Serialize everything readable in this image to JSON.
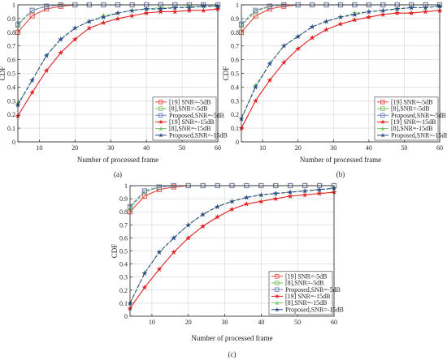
{
  "colors": {
    "ref19_m5": "#e8443a",
    "ref8_m5": "#6fbf5a",
    "prop_m5": "#6b7bb8",
    "ref19_m15": "#e21f1f",
    "ref8_m15": "#79c267",
    "prop_m15": "#2f4e8c"
  },
  "chart_data": [
    {
      "type": "line",
      "caption": "(a)",
      "xlabel": "Number of processed frame",
      "ylabel": "CDF",
      "xlim": [
        4,
        60
      ],
      "ylim": [
        0,
        1
      ],
      "xticks": [
        10,
        20,
        30,
        40,
        50,
        60
      ],
      "yticks": [
        0,
        0.1,
        0.2,
        0.3,
        0.4,
        0.5,
        0.6,
        0.7,
        0.8,
        0.9,
        1
      ],
      "grid": true,
      "legend_position": "bottom-right",
      "series": [
        {
          "name": "[19] SNR=-5dB",
          "marker": "square",
          "color_key": "ref19_m5",
          "x": [
            4,
            8,
            12,
            16,
            20,
            24,
            28,
            32,
            36,
            40,
            44,
            48,
            52,
            56,
            60
          ],
          "y": [
            0.8,
            0.92,
            0.97,
            0.99,
            1,
            1,
            1,
            1,
            1,
            1,
            1,
            1,
            1,
            1,
            1
          ]
        },
        {
          "name": "[8],SNR=-5dB",
          "marker": "square",
          "color_key": "ref8_m5",
          "x": [
            4,
            8,
            12,
            16,
            20,
            24,
            28,
            32,
            36,
            40,
            44,
            48,
            52,
            56,
            60
          ],
          "y": [
            0.85,
            0.96,
            0.99,
            1,
            1,
            1,
            1,
            1,
            1,
            1,
            1,
            1,
            1,
            1,
            1
          ]
        },
        {
          "name": "Proposed,SNR=-5dB",
          "marker": "square",
          "color_key": "prop_m5",
          "x": [
            4,
            8,
            12,
            16,
            20,
            24,
            28,
            32,
            36,
            40,
            44,
            48,
            52,
            56,
            60
          ],
          "y": [
            0.86,
            0.96,
            0.99,
            1,
            1,
            1,
            1,
            1,
            1,
            1,
            1,
            1,
            1,
            1,
            1
          ]
        },
        {
          "name": "[19] SNR=-15dB",
          "marker": "star",
          "color_key": "ref19_m15",
          "x": [
            4,
            8,
            12,
            16,
            20,
            24,
            28,
            32,
            36,
            40,
            44,
            48,
            52,
            56,
            60
          ],
          "y": [
            0.19,
            0.36,
            0.52,
            0.65,
            0.75,
            0.83,
            0.87,
            0.9,
            0.92,
            0.94,
            0.95,
            0.95,
            0.96,
            0.96,
            0.97
          ]
        },
        {
          "name": "[8],SNR=-15dB",
          "marker": "star",
          "color_key": "ref8_m15",
          "x": [
            4,
            8,
            12,
            16,
            20,
            24,
            28,
            32,
            36,
            40,
            44,
            48,
            52,
            56,
            60
          ],
          "y": [
            0.28,
            0.45,
            0.63,
            0.75,
            0.83,
            0.88,
            0.92,
            0.94,
            0.96,
            0.97,
            0.98,
            0.98,
            0.99,
            0.99,
            0.99
          ]
        },
        {
          "name": "Proposed,SNR=-15dB",
          "marker": "star",
          "color_key": "prop_m15",
          "x": [
            4,
            8,
            12,
            16,
            20,
            24,
            28,
            32,
            36,
            40,
            44,
            48,
            52,
            56,
            60
          ],
          "y": [
            0.27,
            0.45,
            0.63,
            0.75,
            0.83,
            0.88,
            0.91,
            0.94,
            0.96,
            0.97,
            0.97,
            0.98,
            0.98,
            0.99,
            0.99
          ]
        }
      ]
    },
    {
      "type": "line",
      "caption": "(b)",
      "xlabel": "Number of processed frame",
      "ylabel": "CDF",
      "xlim": [
        4,
        60
      ],
      "ylim": [
        0,
        1
      ],
      "xticks": [
        10,
        20,
        30,
        40,
        50,
        60
      ],
      "yticks": [
        0,
        0.1,
        0.2,
        0.3,
        0.4,
        0.5,
        0.6,
        0.7,
        0.8,
        0.9,
        1
      ],
      "grid": true,
      "legend_position": "bottom-right",
      "series": [
        {
          "name": "[19] SNR=-5dB",
          "marker": "square",
          "color_key": "ref19_m5",
          "x": [
            4,
            8,
            12,
            16,
            20,
            24,
            28,
            32,
            36,
            40,
            44,
            48,
            52,
            56,
            60
          ],
          "y": [
            0.8,
            0.92,
            0.97,
            0.99,
            1,
            1,
            1,
            1,
            1,
            1,
            1,
            1,
            1,
            1,
            1
          ]
        },
        {
          "name": "[8],SNR=-5dB",
          "marker": "square",
          "color_key": "ref8_m5",
          "x": [
            4,
            8,
            12,
            16,
            20,
            24,
            28,
            32,
            36,
            40,
            44,
            48,
            52,
            56,
            60
          ],
          "y": [
            0.85,
            0.95,
            0.99,
            1,
            1,
            1,
            1,
            1,
            1,
            1,
            1,
            1,
            1,
            1,
            1
          ]
        },
        {
          "name": "Proposed,SNR=-5dB",
          "marker": "square",
          "color_key": "prop_m5",
          "x": [
            4,
            8,
            12,
            16,
            20,
            24,
            28,
            32,
            36,
            40,
            44,
            48,
            52,
            56,
            60
          ],
          "y": [
            0.86,
            0.96,
            0.99,
            1,
            1,
            1,
            1,
            1,
            1,
            1,
            1,
            1,
            1,
            1,
            1
          ]
        },
        {
          "name": "[19] SNR=-15dB",
          "marker": "star",
          "color_key": "ref19_m15",
          "x": [
            4,
            8,
            12,
            16,
            20,
            24,
            28,
            32,
            36,
            40,
            44,
            48,
            52,
            56,
            60
          ],
          "y": [
            0.1,
            0.3,
            0.45,
            0.58,
            0.68,
            0.76,
            0.82,
            0.86,
            0.89,
            0.91,
            0.93,
            0.94,
            0.94,
            0.95,
            0.96
          ]
        },
        {
          "name": "[8],SNR=-15dB",
          "marker": "star",
          "color_key": "ref8_m15",
          "x": [
            4,
            8,
            12,
            16,
            20,
            24,
            28,
            32,
            36,
            40,
            44,
            48,
            52,
            56,
            60
          ],
          "y": [
            0.17,
            0.41,
            0.57,
            0.7,
            0.77,
            0.84,
            0.88,
            0.91,
            0.94,
            0.95,
            0.96,
            0.97,
            0.98,
            0.98,
            0.99
          ]
        },
        {
          "name": "Proposed,SNR=-15dB",
          "marker": "star",
          "color_key": "prop_m15",
          "x": [
            4,
            8,
            12,
            16,
            20,
            24,
            28,
            32,
            36,
            40,
            44,
            48,
            52,
            56,
            60
          ],
          "y": [
            0.17,
            0.4,
            0.57,
            0.7,
            0.77,
            0.84,
            0.88,
            0.91,
            0.93,
            0.95,
            0.96,
            0.97,
            0.98,
            0.98,
            0.99
          ]
        }
      ]
    },
    {
      "type": "line",
      "caption": "(c)",
      "xlabel": "Number of processed frame",
      "ylabel": "CDF",
      "xlim": [
        4,
        60
      ],
      "ylim": [
        0,
        1
      ],
      "xticks": [
        10,
        20,
        30,
        40,
        50,
        60
      ],
      "yticks": [
        0,
        0.1,
        0.2,
        0.3,
        0.4,
        0.5,
        0.6,
        0.7,
        0.8,
        0.9,
        1
      ],
      "grid": true,
      "legend_position": "bottom-right",
      "series": [
        {
          "name": "[19] SNR=-5dB",
          "marker": "square",
          "color_key": "ref19_m5",
          "x": [
            4,
            8,
            12,
            16,
            20,
            24,
            28,
            32,
            36,
            40,
            44,
            48,
            52,
            56,
            60
          ],
          "y": [
            0.8,
            0.92,
            0.97,
            0.99,
            1,
            1,
            1,
            1,
            1,
            1,
            1,
            1,
            1,
            1,
            1
          ]
        },
        {
          "name": "[8],SNR=-5dB",
          "marker": "square",
          "color_key": "ref8_m5",
          "x": [
            4,
            8,
            12,
            16,
            20,
            24,
            28,
            32,
            36,
            40,
            44,
            48,
            52,
            56,
            60
          ],
          "y": [
            0.83,
            0.95,
            0.99,
            1,
            1,
            1,
            1,
            1,
            1,
            1,
            1,
            1,
            1,
            1,
            1
          ]
        },
        {
          "name": "Proposed,SNR=-5dB",
          "marker": "square",
          "color_key": "prop_m5",
          "x": [
            4,
            8,
            12,
            16,
            20,
            24,
            28,
            32,
            36,
            40,
            44,
            48,
            52,
            56,
            60
          ],
          "y": [
            0.84,
            0.96,
            0.99,
            1,
            1,
            1,
            1,
            1,
            1,
            1,
            1,
            1,
            1,
            1,
            1
          ]
        },
        {
          "name": "[19] SNR=-15dB",
          "marker": "star",
          "color_key": "ref19_m15",
          "x": [
            4,
            8,
            12,
            16,
            20,
            24,
            28,
            32,
            36,
            40,
            44,
            48,
            52,
            56,
            60
          ],
          "y": [
            0.06,
            0.22,
            0.36,
            0.49,
            0.6,
            0.69,
            0.76,
            0.82,
            0.86,
            0.88,
            0.9,
            0.92,
            0.93,
            0.94,
            0.95
          ]
        },
        {
          "name": "[8],SNR=-15dB",
          "marker": "star",
          "color_key": "ref8_m15",
          "x": [
            4,
            8,
            12,
            16,
            20,
            24,
            28,
            32,
            36,
            40,
            44,
            48,
            52,
            56,
            60
          ],
          "y": [
            0.1,
            0.33,
            0.49,
            0.6,
            0.7,
            0.78,
            0.84,
            0.88,
            0.91,
            0.93,
            0.94,
            0.95,
            0.96,
            0.97,
            0.98
          ]
        },
        {
          "name": "Proposed,SNR=-15dB",
          "marker": "star",
          "color_key": "prop_m15",
          "x": [
            4,
            8,
            12,
            16,
            20,
            24,
            28,
            32,
            36,
            40,
            44,
            48,
            52,
            56,
            60
          ],
          "y": [
            0.1,
            0.33,
            0.49,
            0.6,
            0.7,
            0.78,
            0.84,
            0.88,
            0.91,
            0.93,
            0.94,
            0.95,
            0.96,
            0.97,
            0.98
          ]
        }
      ]
    }
  ]
}
